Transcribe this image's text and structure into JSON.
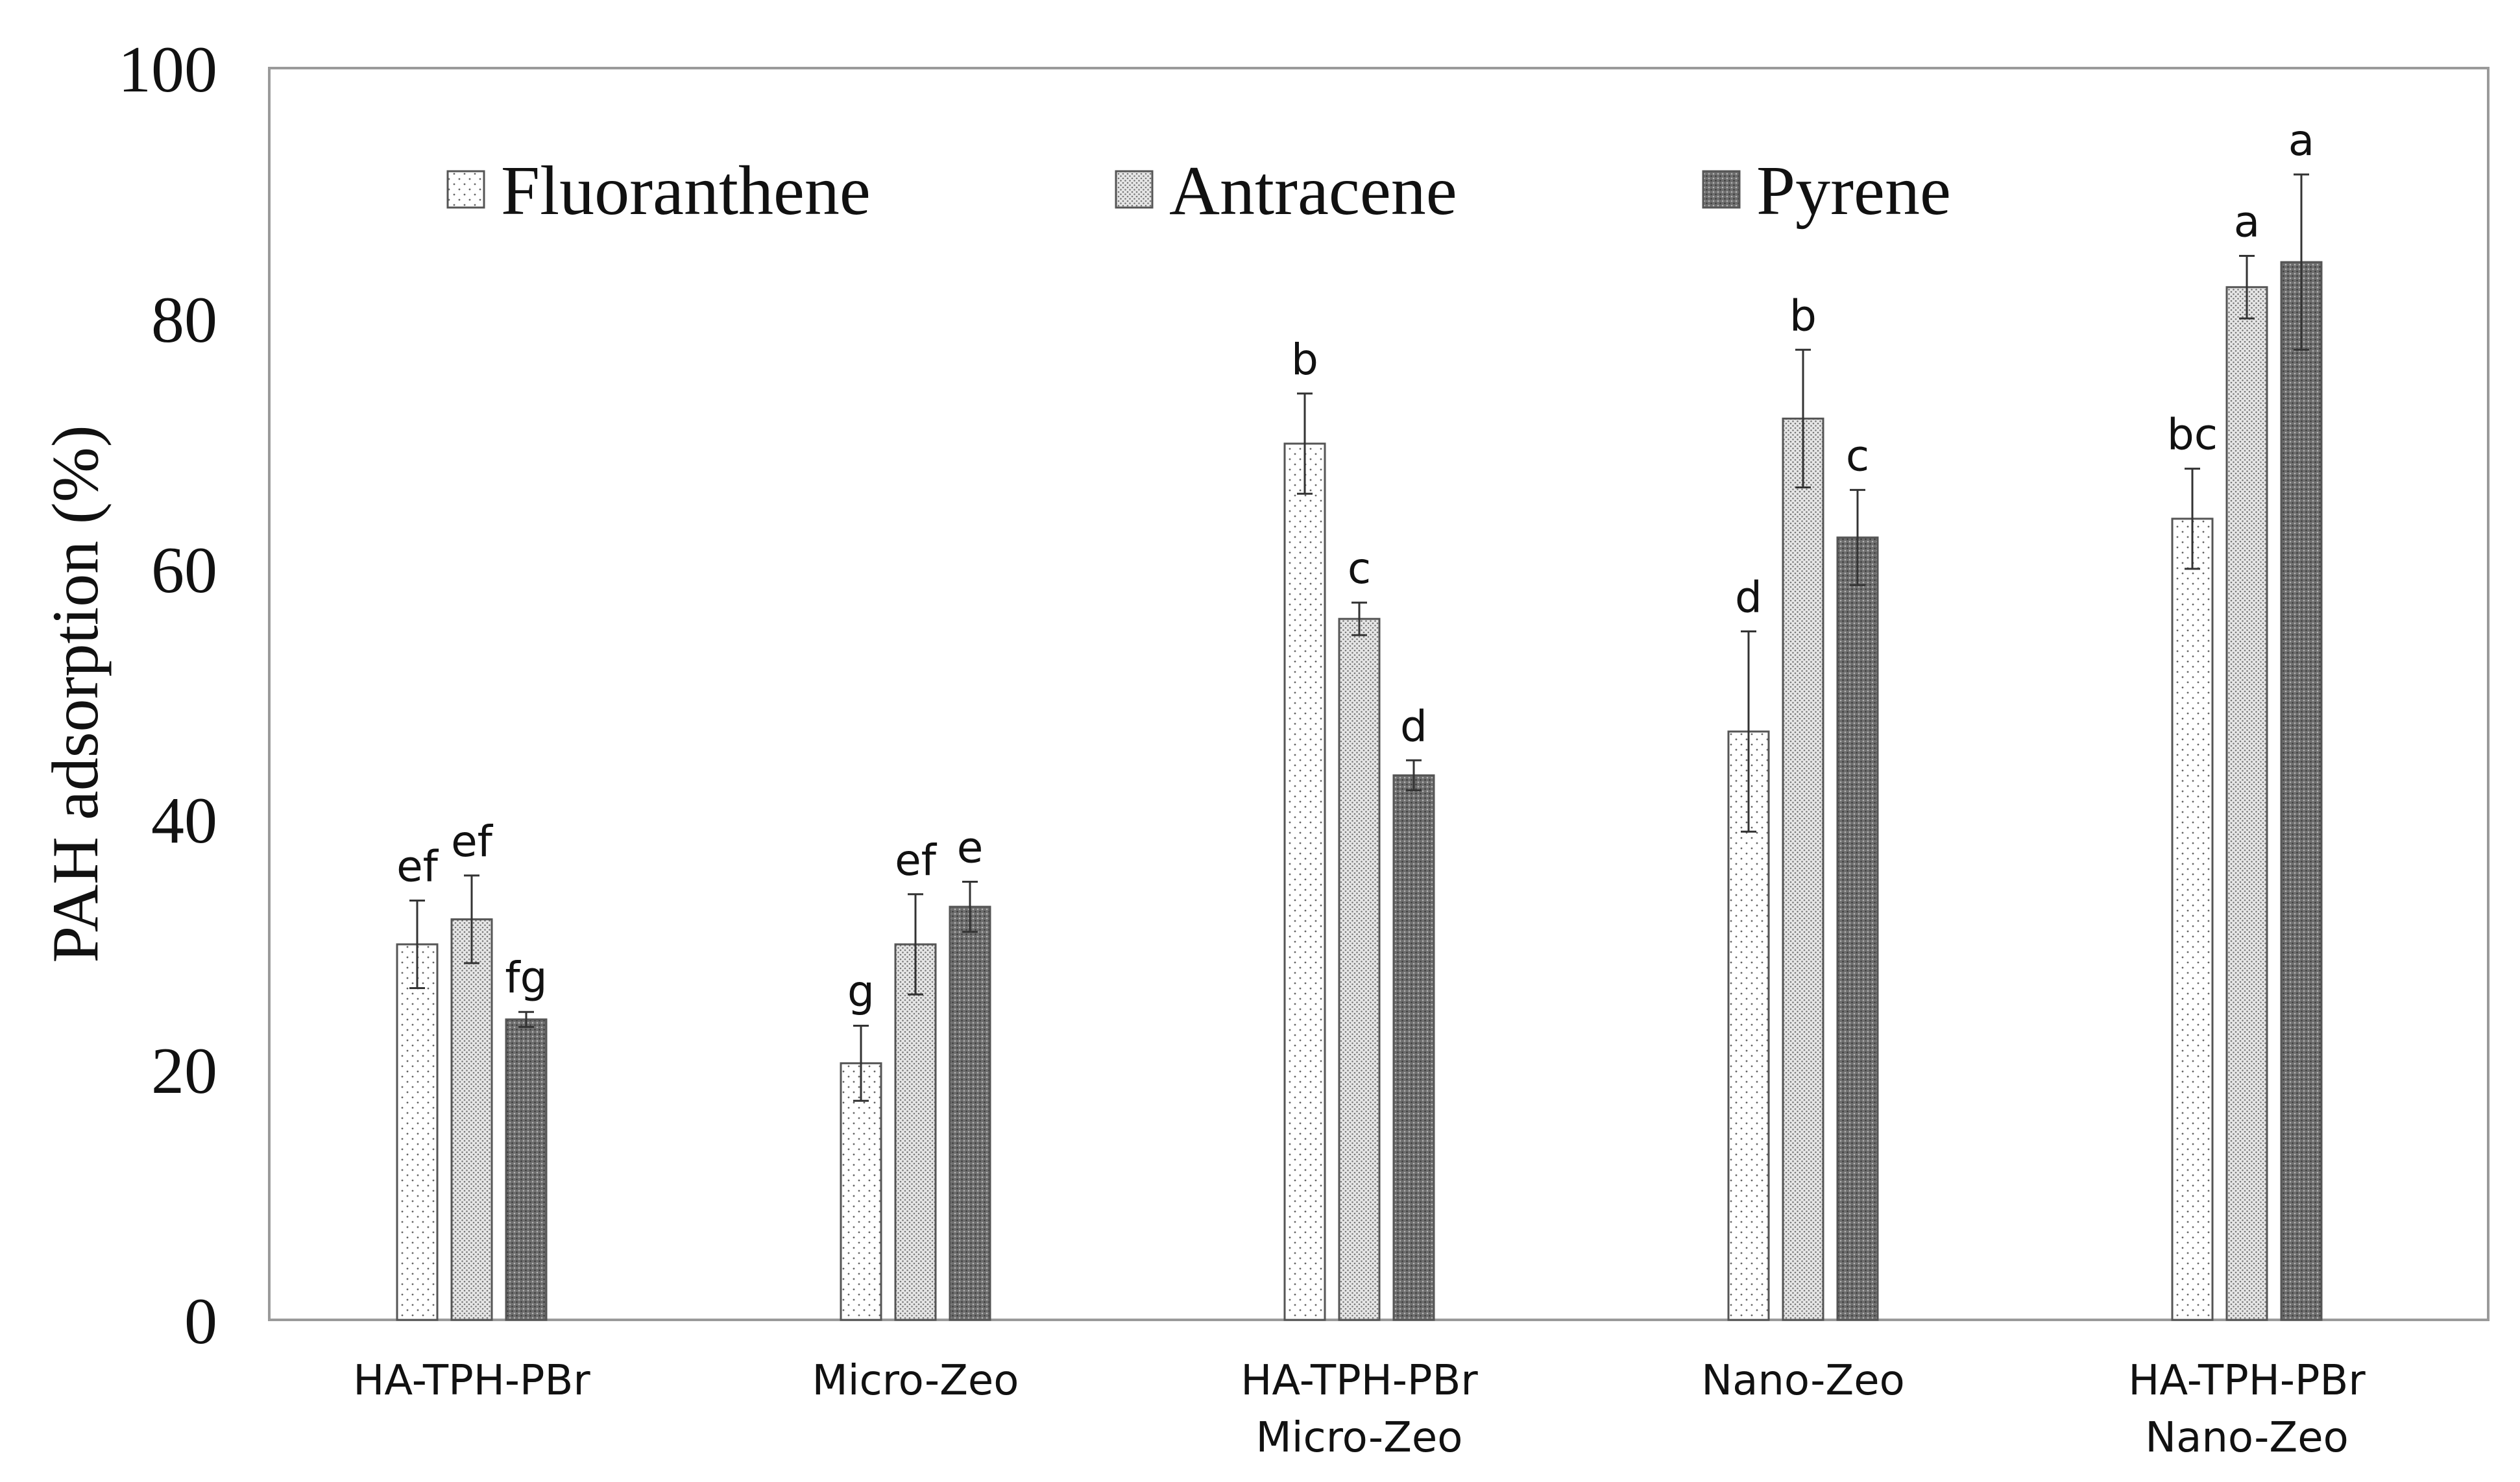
{
  "chart_data": {
    "type": "bar",
    "title": "",
    "xlabel": "",
    "ylabel": "PAH adsorption (%)",
    "ylim": [
      0,
      100
    ],
    "yticks": [
      "0",
      "20",
      "40",
      "60",
      "80",
      "100"
    ],
    "grid": false,
    "legend_position": "top",
    "categories": [
      [
        "HA-TPH-PBr"
      ],
      [
        "Micro-Zeo"
      ],
      [
        "HA-TPH-PBr",
        "Micro-Zeo"
      ],
      [
        "Nano-Zeo"
      ],
      [
        "HA-TPH-PBr",
        "Nano-Zeo"
      ]
    ],
    "series": [
      {
        "name": "Fluoranthene",
        "pattern": "dots",
        "values": [
          30,
          20.5,
          70,
          47,
          64
        ],
        "errors": [
          3.5,
          3,
          4,
          8,
          4
        ],
        "labels": [
          "ef",
          "g",
          "b",
          "d",
          "bc"
        ]
      },
      {
        "name": "Antracene",
        "pattern": "fine-dots",
        "values": [
          32,
          30,
          56,
          72,
          82.5
        ],
        "errors": [
          3.5,
          4,
          1.3,
          5.5,
          2.5
        ],
        "labels": [
          "ef",
          "ef",
          "c",
          "b",
          "a"
        ]
      },
      {
        "name": "Pyrene",
        "pattern": "dense",
        "values": [
          24,
          33,
          43.5,
          62.5,
          84.5
        ],
        "errors": [
          0.6,
          2,
          1.2,
          3.8,
          7
        ],
        "labels": [
          "fg",
          "e",
          "d",
          "c",
          "a"
        ]
      }
    ]
  }
}
